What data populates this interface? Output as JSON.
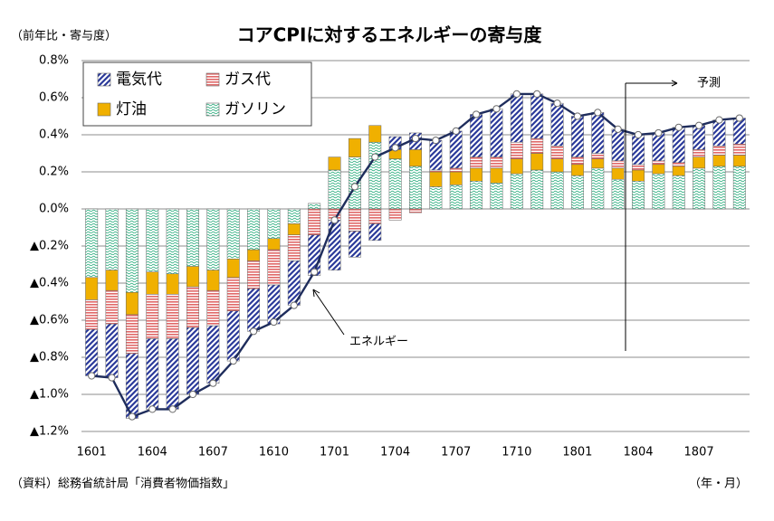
{
  "chart_data": {
    "type": "stacked-bar-line",
    "title": "コアCPIに対するエネルギーの寄与度",
    "y_axis_label": "（前年比・寄与度）",
    "x_axis_label": "（年・月）",
    "source": "（資料）総務省統計局「消費者物価指数」",
    "forecast_label": "予測",
    "categories": [
      "1601",
      null,
      null,
      "1604",
      null,
      null,
      "1607",
      null,
      null,
      "1610",
      null,
      null,
      "1701",
      null,
      null,
      "1704",
      null,
      null,
      "1707",
      null,
      null,
      "1710",
      null,
      null,
      "1801",
      null,
      null,
      "1804",
      null,
      null,
      "1807",
      null,
      null
    ],
    "series": [
      {
        "name": "電気代",
        "color": "#2b3a9a",
        "pattern": "diagonal",
        "values": [
          -0.25,
          -0.29,
          -0.35,
          -0.38,
          -0.38,
          -0.36,
          -0.31,
          -0.27,
          -0.23,
          -0.21,
          -0.24,
          -0.22,
          -0.27,
          -0.14,
          -0.09,
          0.07,
          0.09,
          0.16,
          0.2,
          0.23,
          0.26,
          0.26,
          0.24,
          0.23,
          0.22,
          0.22,
          0.17,
          0.16,
          0.15,
          0.19,
          0.13,
          0.14,
          0.14
        ]
      },
      {
        "name": "ガス代",
        "color": "#e06868",
        "pattern": "horizontal",
        "values": [
          -0.16,
          -0.18,
          -0.21,
          -0.24,
          -0.24,
          -0.22,
          -0.19,
          -0.18,
          -0.15,
          -0.19,
          -0.14,
          -0.14,
          -0.06,
          -0.12,
          -0.08,
          -0.06,
          -0.02,
          0.01,
          0.02,
          0.06,
          0.06,
          0.09,
          0.08,
          0.07,
          0.04,
          0.03,
          0.04,
          0.03,
          0.02,
          0.02,
          0.04,
          0.05,
          0.06
        ]
      },
      {
        "name": "灯油",
        "color": "#f0b000",
        "pattern": "solid",
        "values": [
          -0.12,
          -0.11,
          -0.12,
          -0.12,
          -0.11,
          -0.11,
          -0.11,
          -0.1,
          -0.06,
          -0.06,
          -0.06,
          0.0,
          0.07,
          0.1,
          0.09,
          0.05,
          0.09,
          0.08,
          0.07,
          0.07,
          0.08,
          0.08,
          0.09,
          0.07,
          0.06,
          0.05,
          0.06,
          0.06,
          0.05,
          0.05,
          0.06,
          0.06,
          0.06
        ]
      },
      {
        "name": "ガソリン",
        "color": "#3fb58a",
        "pattern": "dots",
        "values": [
          -0.37,
          -0.33,
          -0.45,
          -0.34,
          -0.35,
          -0.31,
          -0.33,
          -0.27,
          -0.22,
          -0.16,
          -0.08,
          0.03,
          0.21,
          0.28,
          0.36,
          0.27,
          0.23,
          0.12,
          0.13,
          0.15,
          0.14,
          0.19,
          0.21,
          0.2,
          0.18,
          0.22,
          0.16,
          0.15,
          0.19,
          0.18,
          0.22,
          0.23,
          0.23
        ]
      }
    ],
    "line": {
      "name": "エネルギー",
      "color": "#1f2d5c",
      "values": [
        -0.9,
        -0.91,
        -1.12,
        -1.08,
        -1.08,
        -1.0,
        -0.94,
        -0.82,
        -0.66,
        -0.61,
        -0.52,
        -0.34,
        -0.06,
        0.12,
        0.28,
        0.33,
        0.38,
        0.37,
        0.42,
        0.51,
        0.54,
        0.62,
        0.62,
        0.57,
        0.5,
        0.52,
        0.43,
        0.4,
        0.41,
        0.44,
        0.45,
        0.48,
        0.49
      ]
    },
    "ylim": [
      -1.2,
      0.8
    ],
    "yticks": [
      {
        "value": -1.2,
        "label": "▲1.2%"
      },
      {
        "value": -1.0,
        "label": "▲1.0%"
      },
      {
        "value": -0.8,
        "label": "▲0.8%"
      },
      {
        "value": -0.6,
        "label": "▲0.6%"
      },
      {
        "value": -0.4,
        "label": "▲0.4%"
      },
      {
        "value": -0.2,
        "label": "▲0.2%"
      },
      {
        "value": 0.0,
        "label": "0.0%"
      },
      {
        "value": 0.2,
        "label": "0.2%"
      },
      {
        "value": 0.4,
        "label": "0.4%"
      },
      {
        "value": 0.6,
        "label": "0.6%"
      },
      {
        "value": 0.8,
        "label": "0.8%"
      }
    ],
    "grid": true
  }
}
